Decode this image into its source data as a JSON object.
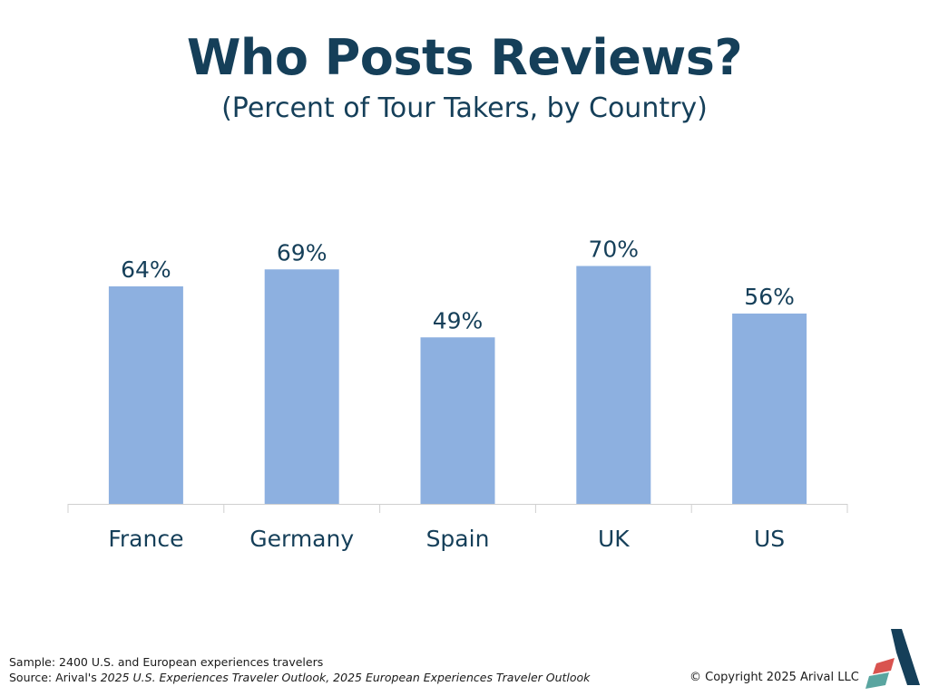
{
  "header": {
    "title": "Who Posts Reviews?",
    "subtitle": "(Percent of Tour Takers, by Country)"
  },
  "chart_data": {
    "type": "bar",
    "title": "Who Posts Reviews?",
    "subtitle": "(Percent of Tour Takers, by Country)",
    "categories": [
      "France",
      "Germany",
      "Spain",
      "UK",
      "US"
    ],
    "values": [
      64,
      69,
      49,
      70,
      56
    ],
    "value_labels": [
      "64%",
      "69%",
      "49%",
      "70%",
      "56%"
    ],
    "xlabel": "",
    "ylabel": "",
    "ylim": [
      0,
      100
    ],
    "grid": false,
    "legend": "none",
    "bar_color": "#8db0e0",
    "text_color": "#153f59"
  },
  "footer": {
    "sample": "Sample: 2400 U.S. and European experiences travelers",
    "source_prefix": "Source: Arival's ",
    "source_titles": "2025 U.S. Experiences Traveler Outlook, 2025 European Experiences Traveler Outlook",
    "copyright": "© Copyright 2025 Arival LLC"
  },
  "logo": {
    "icon": "arival-logo-icon",
    "colors": [
      "#153f59",
      "#d9534f",
      "#5aa5a0"
    ]
  }
}
